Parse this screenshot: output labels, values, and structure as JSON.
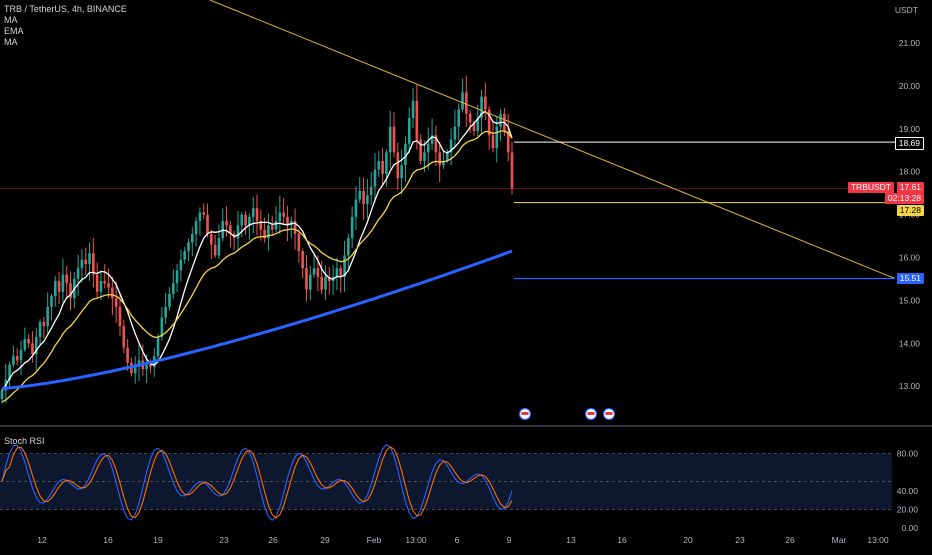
{
  "header": {
    "symbol_line": "TRB / TetherUS, 4h, BINANCE",
    "indicators": [
      "MA",
      "EMA",
      "MA"
    ]
  },
  "price_axis": {
    "currency": "USDT",
    "ticks": [
      "21.00",
      "20.00",
      "19.00",
      "18.00",
      "17.00",
      "16.00",
      "15.00",
      "14.00",
      "13.00"
    ]
  },
  "price_tags": {
    "white_line": "18.69",
    "symbol": "TRBUSDT",
    "last_price": "17.61",
    "countdown": "02:13:28",
    "yellow_line": "17.28",
    "blue_line": "15.51"
  },
  "oscillator": {
    "name": "Stoch RSI",
    "ticks": [
      "80.00",
      "40.00",
      "20.00",
      "0.00"
    ]
  },
  "time_axis": {
    "ticks": [
      "12",
      "16",
      "19",
      "23",
      "26",
      "29",
      "Feb",
      "13:00",
      "6",
      "9",
      "13",
      "16",
      "20",
      "23",
      "26",
      "Mar",
      "13:00"
    ]
  },
  "colors": {
    "bull": "#26a69a",
    "bear": "#ef5350",
    "ma_white": "#ffffff",
    "ema_yellow": "#f5d547",
    "ma_blue": "#2962ff",
    "stoch_k": "#2962ff",
    "stoch_d": "#ff6d00",
    "trendline": "#d8b13a",
    "last_price": "#f23645"
  },
  "chart_data": {
    "type": "candlestick",
    "y_range": [
      12.5,
      21.8
    ],
    "price_levels": [
      18.69,
      17.28,
      15.51
    ],
    "last_price": 17.61,
    "closes": [
      12.9,
      13.15,
      13.5,
      13.7,
      13.6,
      13.85,
      14.1,
      14.0,
      13.75,
      14.15,
      14.5,
      14.4,
      14.85,
      15.1,
      15.45,
      15.2,
      15.6,
      15.4,
      15.05,
      15.5,
      15.75,
      15.95,
      15.85,
      16.1,
      15.6,
      15.2,
      15.45,
      15.4,
      15.3,
      15.05,
      14.85,
      14.4,
      13.9,
      13.55,
      13.3,
      13.45,
      13.6,
      13.4,
      13.5,
      13.45,
      13.7,
      14.15,
      14.6,
      14.85,
      15.15,
      15.4,
      15.7,
      15.95,
      16.15,
      16.35,
      16.55,
      16.85,
      17.05,
      17.0,
      16.55,
      16.3,
      16.05,
      16.45,
      16.85,
      16.75,
      16.55,
      16.45,
      16.75,
      17.0,
      16.75,
      16.95,
      17.15,
      16.85,
      16.65,
      16.45,
      16.75,
      16.65,
      16.85,
      17.05,
      16.95,
      16.75,
      16.85,
      16.55,
      16.15,
      15.75,
      15.25,
      15.6,
      15.75,
      15.55,
      15.25,
      15.55,
      15.45,
      15.55,
      15.75,
      15.55,
      16.05,
      16.45,
      16.95,
      17.35,
      17.55,
      17.25,
      17.45,
      17.65,
      18.05,
      18.25,
      17.95,
      18.45,
      19.05,
      18.45,
      17.85,
      18.15,
      18.65,
      19.25,
      19.65,
      18.75,
      18.25,
      18.45,
      18.65,
      18.85,
      18.45,
      18.15,
      18.25,
      18.45,
      18.75,
      19.05,
      19.45,
      19.85,
      19.35,
      19.15,
      18.95,
      19.25,
      19.75,
      19.45,
      18.85,
      18.55,
      19.05,
      19.35,
      18.95,
      18.45,
      17.61
    ]
  }
}
